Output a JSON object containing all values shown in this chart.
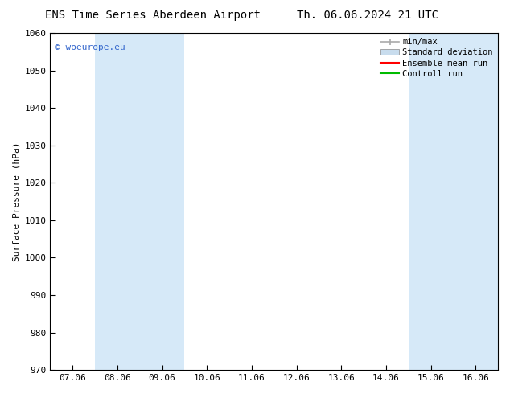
{
  "title_left": "ENS Time Series Aberdeen Airport",
  "title_right": "Th. 06.06.2024 21 UTC",
  "ylabel": "Surface Pressure (hPa)",
  "ylim": [
    970,
    1060
  ],
  "yticks": [
    970,
    980,
    990,
    1000,
    1010,
    1020,
    1030,
    1040,
    1050,
    1060
  ],
  "x_labels": [
    "07.06",
    "08.06",
    "09.06",
    "10.06",
    "11.06",
    "12.06",
    "13.06",
    "14.06",
    "15.06",
    "16.06"
  ],
  "x_tick_positions": [
    0,
    1,
    2,
    3,
    4,
    5,
    6,
    7,
    8,
    9
  ],
  "xlim": [
    -0.5,
    9.5
  ],
  "shaded_bands": [
    {
      "x_start": 0.5,
      "x_end": 2.5
    },
    {
      "x_start": 7.5,
      "x_end": 9.5
    }
  ],
  "shaded_color": "#d6e9f8",
  "watermark_text": "© woeurope.eu",
  "watermark_color": "#3366cc",
  "legend_entries": [
    {
      "label": "min/max",
      "color": "#aaaaaa",
      "type": "errorbar"
    },
    {
      "label": "Standard deviation",
      "color": "#c8dced",
      "type": "fill"
    },
    {
      "label": "Ensemble mean run",
      "color": "#ff0000",
      "type": "line"
    },
    {
      "label": "Controll run",
      "color": "#00bb00",
      "type": "line"
    }
  ],
  "background_color": "#ffffff",
  "plot_bg_color": "#ffffff",
  "font_size_title": 10,
  "font_size_axis_label": 8,
  "font_size_tick": 8,
  "font_size_legend": 7.5,
  "font_size_watermark": 8
}
